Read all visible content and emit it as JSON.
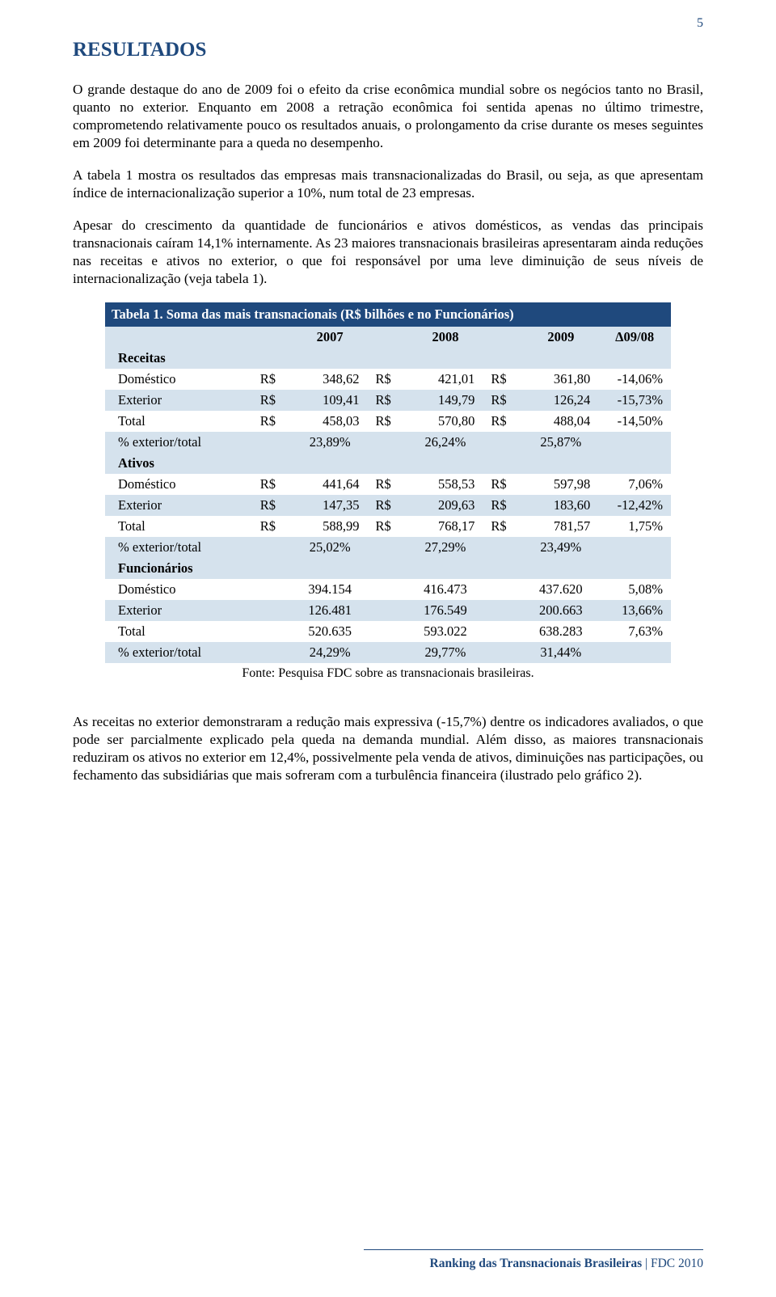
{
  "page_number": "5",
  "heading": "RESULTADOS",
  "colors": {
    "heading": "#1f497d",
    "table_header_bg": "#1f497d",
    "table_header_fg": "#ffffff",
    "row_alt_bg": "#d5e2ed",
    "row_bg": "#ffffff",
    "text": "#000000"
  },
  "paragraphs": {
    "p1": "O grande destaque do ano de 2009 foi o efeito da crise econômica mundial sobre os negócios tanto no Brasil, quanto no exterior. Enquanto em 2008 a retração econômica foi sentida apenas no último trimestre, comprometendo relativamente pouco os resultados anuais, o prolongamento da crise durante os meses seguintes em 2009 foi determinante para a queda no desempenho.",
    "p2": "A tabela 1 mostra os resultados das empresas mais transnacionalizadas do Brasil, ou seja, as que apresentam índice de internacionalização superior a 10%, num total de 23 empresas.",
    "p3": "Apesar do crescimento da quantidade de funcionários e ativos domésticos, as vendas das principais transnacionais caíram 14,1% internamente. As 23 maiores transnacionais brasileiras apresentaram ainda reduções nas receitas e ativos no exterior, o que foi responsável por uma leve diminuição de seus níveis de internacionalização (veja tabela 1).",
    "p4": "As receitas no exterior demonstraram a redução mais expressiva (-15,7%) dentre os indicadores avaliados, o que pode ser parcialmente explicado pela queda na demanda mundial. Além disso, as maiores transnacionais reduziram os ativos no exterior em 12,4%, possivelmente pela venda de ativos, diminuições nas participações, ou fechamento das subsidiárias que mais sofreram com a turbulência financeira (ilustrado pelo gráfico 2)."
  },
  "table": {
    "title": "Tabela 1. Soma das mais transnacionais (R$ bilhões e no Funcionários)",
    "year_cols": [
      "2007",
      "2008",
      "2009",
      "Δ09/08"
    ],
    "currency": "R$",
    "sections": [
      {
        "name": "Receitas",
        "rows": [
          {
            "label": "Doméstico",
            "v": [
              "348,62",
              "421,01",
              "361,80"
            ],
            "delta": "-14,06%",
            "shade": "white"
          },
          {
            "label": "Exterior",
            "v": [
              "109,41",
              "149,79",
              "126,24"
            ],
            "delta": "-15,73%",
            "shade": "blue"
          },
          {
            "label": "Total",
            "v": [
              "458,03",
              "570,80",
              "488,04"
            ],
            "delta": "-14,50%",
            "shade": "white"
          }
        ],
        "pct": {
          "label": "% exterior/total",
          "v": [
            "23,89%",
            "26,24%",
            "25,87%"
          ],
          "shade": "blue"
        }
      },
      {
        "name": "Ativos",
        "rows": [
          {
            "label": "Doméstico",
            "v": [
              "441,64",
              "558,53",
              "597,98"
            ],
            "delta": "7,06%",
            "shade": "white"
          },
          {
            "label": "Exterior",
            "v": [
              "147,35",
              "209,63",
              "183,60"
            ],
            "delta": "-12,42%",
            "shade": "blue"
          },
          {
            "label": "Total",
            "v": [
              "588,99",
              "768,17",
              "781,57"
            ],
            "delta": "1,75%",
            "shade": "white"
          }
        ],
        "pct": {
          "label": "% exterior/total",
          "v": [
            "25,02%",
            "27,29%",
            "23,49%"
          ],
          "shade": "blue"
        }
      },
      {
        "name": "Funcionários",
        "rows": [
          {
            "label": "Doméstico",
            "v": [
              "394.154",
              "416.473",
              "437.620"
            ],
            "delta": "5,08%",
            "shade": "white",
            "no_cur": true
          },
          {
            "label": "Exterior",
            "v": [
              "126.481",
              "176.549",
              "200.663"
            ],
            "delta": "13,66%",
            "shade": "blue",
            "no_cur": true
          },
          {
            "label": "Total",
            "v": [
              "520.635",
              "593.022",
              "638.283"
            ],
            "delta": "7,63%",
            "shade": "white",
            "no_cur": true
          }
        ],
        "pct": {
          "label": "% exterior/total",
          "v": [
            "24,29%",
            "29,77%",
            "31,44%"
          ],
          "shade": "blue"
        }
      }
    ],
    "fonte": "Fonte: Pesquisa FDC sobre as transnacionais brasileiras."
  },
  "footer": {
    "bold": "Ranking das Transnacionais Brasileiras",
    "rest": " | FDC 2010"
  }
}
